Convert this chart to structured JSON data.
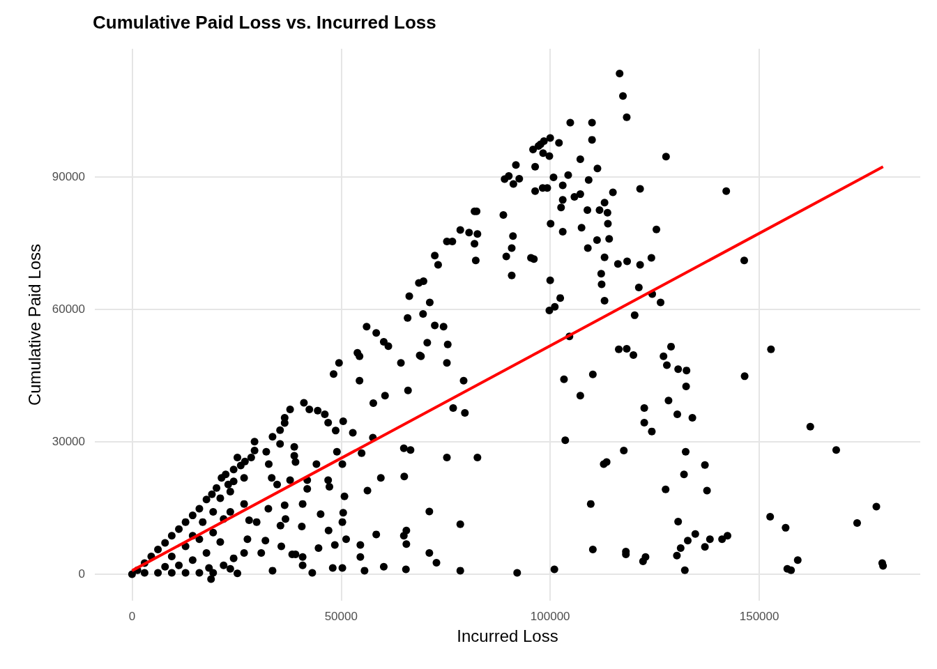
{
  "chart_data": {
    "type": "scatter",
    "title": "Cumulative Paid Loss vs. Incurred Loss",
    "xlabel": "Incurred Loss",
    "ylabel": "Cumulative Paid Loss",
    "xlim": [
      -8900,
      188500
    ],
    "xticks": [
      0,
      50000,
      100000,
      150000
    ],
    "ylim": [
      -6000,
      118900
    ],
    "yticks": [
      0,
      30000,
      60000,
      90000
    ],
    "grid": true,
    "series": [
      {
        "color": "#000000",
        "marker": "circle",
        "x": [
          116600,
          117400,
          118300,
          104800,
          110000,
          110000,
          97700,
          98500,
          100000,
          102100,
          95900,
          97200,
          98300,
          99800,
          96400,
          92600,
          91800,
          90100,
          89100,
          91200,
          96400,
          98200,
          99300,
          100800,
          103000,
          104300,
          103000,
          102600,
          105800,
          107200,
          107200,
          108900,
          109200,
          111300,
          111800,
          113000,
          113700,
          113800,
          115000,
          114100,
          113000,
          111200,
          109000,
          107500,
          103000,
          100100,
          95400,
          96100,
          90800,
          91100,
          88800,
          90800,
          89500,
          100000,
          99800,
          101100,
          102400,
          104600,
          116200,
          118400,
          112200,
          112300,
          113000,
          121500,
          121200,
          120200,
          124200,
          125400,
          127700,
          121500,
          142100,
          146400,
          146500,
          152800,
          124400,
          126400,
          128900,
          127100,
          127900,
          130600,
          132600,
          132500,
          116400,
          118300,
          119900,
          110200,
          103300,
          107200,
          128300,
          130400,
          134000,
          122500,
          122500,
          124300,
          103600,
          117600,
          132400,
          112800,
          113500,
          137000,
          109700,
          127600,
          137500,
          162200,
          168400,
          152600,
          156300,
          173400,
          178000,
          179400,
          179600,
          159200,
          156700,
          157600,
          142400,
          141100,
          138200,
          137000,
          134700,
          132900,
          131200,
          130300,
          130600,
          132200,
          132000,
          122800,
          122200,
          118100,
          118100,
          110200,
          101000,
          92100,
          78500,
          72800,
          71100,
          71100,
          78500,
          65500,
          65600,
          65600,
          65000,
          58400,
          60200,
          51200,
          54600,
          54600,
          55600,
          50300,
          50500,
          50800,
          48500,
          47000,
          48000,
          50300,
          45100,
          44600,
          43100,
          40800,
          40800,
          35700,
          35500,
          36700,
          33600,
          40600,
          38300,
          39100,
          49500,
          48200,
          53900,
          54400,
          56100,
          58400,
          60200,
          61300,
          54400,
          60500,
          57700,
          64300,
          66000,
          66300,
          65900,
          68600,
          69700,
          71200,
          69600,
          68800,
          70600,
          72400,
          73200,
          72400,
          74500,
          75500,
          75300,
          75300,
          76600,
          78500,
          80600,
          81900,
          82400,
          81900,
          82200,
          82600,
          79300,
          79600,
          76800,
          75300,
          82600,
          69100,
          65000,
          66600,
          65100,
          59500,
          56300,
          57600,
          54900,
          52800,
          50500,
          48700,
          46900,
          46100,
          49000,
          50300,
          46900,
          47200,
          44400,
          42400,
          41100,
          44100,
          41900,
          41900,
          40800,
          38800,
          38800,
          37800,
          36500,
          36500,
          35400,
          39100,
          35400,
          33600,
          32100,
          29300,
          29300,
          28500,
          27000,
          25200,
          32700,
          33400,
          34700,
          37800,
          36500,
          32600,
          26800,
          23500,
          23500,
          22400,
          21400,
          26800,
          28000,
          29800,
          27600,
          31900,
          30900,
          26800,
          24300,
          23500,
          25200,
          21900,
          18900,
          18400,
          21100,
          0,
          1300,
          3000,
          4600,
          6200,
          7900,
          9500,
          11200,
          12800,
          14500,
          16100,
          17800,
          19100,
          20200,
          3000,
          6200,
          9500,
          12800,
          16100,
          19400,
          9500,
          12800,
          16100,
          14500,
          11200,
          7900,
          17800,
          19400,
          19400,
          16900,
          14500,
          21100,
          21900,
          23000,
          24300,
          26000,
          24300
        ],
        "values": [
          113300,
          108200,
          103400,
          102200,
          102200,
          98300,
          97300,
          98000,
          98700,
          97600,
          96100,
          96900,
          95300,
          94600,
          92200,
          89500,
          92600,
          90100,
          89400,
          88300,
          86700,
          87400,
          87400,
          89800,
          88000,
          90300,
          84700,
          83000,
          85400,
          86000,
          93900,
          82400,
          89200,
          91800,
          82400,
          84100,
          81800,
          79300,
          86400,
          75900,
          71700,
          75600,
          73800,
          78400,
          77500,
          79300,
          71600,
          71300,
          73800,
          76500,
          81300,
          67600,
          71900,
          66500,
          59700,
          60500,
          62500,
          53800,
          70200,
          70800,
          68000,
          65600,
          61900,
          70000,
          64900,
          58600,
          71600,
          78000,
          94500,
          87200,
          86700,
          71000,
          44800,
          50900,
          63400,
          61500,
          51500,
          49300,
          47300,
          46400,
          46100,
          42500,
          50900,
          51000,
          49600,
          45200,
          44100,
          40400,
          39300,
          36200,
          35400,
          37600,
          34300,
          32300,
          30300,
          28000,
          27700,
          24900,
          25400,
          24700,
          15900,
          19200,
          18900,
          33400,
          28100,
          13000,
          10500,
          11600,
          15300,
          2500,
          1900,
          3200,
          1200,
          900,
          8700,
          7900,
          7900,
          6200,
          9100,
          7600,
          5900,
          4200,
          11900,
          900,
          22600,
          3900,
          2900,
          5100,
          4500,
          5600,
          1100,
          300,
          800,
          2600,
          4800,
          14200,
          11300,
          1100,
          9900,
          6800,
          8700,
          9000,
          1700,
          7900,
          6600,
          3900,
          800,
          11800,
          13900,
          17600,
          6600,
          9900,
          1400,
          1400,
          13600,
          5900,
          300,
          2000,
          3900,
          6300,
          11000,
          12500,
          800,
          10800,
          4500,
          4500,
          47800,
          45300,
          50100,
          49300,
          56000,
          54600,
          52600,
          51600,
          43800,
          40400,
          38700,
          47800,
          41600,
          62900,
          58000,
          65900,
          66300,
          61500,
          58900,
          49500,
          52400,
          72100,
          70000,
          56300,
          56000,
          52000,
          47800,
          75300,
          75300,
          77900,
          77300,
          82100,
          82100,
          74800,
          71000,
          77000,
          43800,
          36500,
          37600,
          26400,
          26400,
          49300,
          28500,
          28100,
          22100,
          21800,
          18900,
          30900,
          27400,
          32000,
          34600,
          32500,
          34300,
          36200,
          27700,
          24900,
          21300,
          19800,
          37000,
          37300,
          38800,
          24900,
          21300,
          19300,
          15900,
          26800,
          28800,
          37300,
          35400,
          34200,
          32600,
          25400,
          29500,
          31100,
          27700,
          30000,
          28000,
          26400,
          25500,
          26400,
          24900,
          21800,
          20300,
          21300,
          15600,
          14800,
          15900,
          14100,
          18700,
          22600,
          21800,
          21800,
          12200,
          11800,
          7900,
          7600,
          4800,
          4800,
          3600,
          1200,
          200,
          2000,
          -1100,
          1400,
          7300,
          0,
          900,
          2500,
          4000,
          5600,
          7100,
          8700,
          10200,
          11800,
          13300,
          14800,
          16900,
          18100,
          19500,
          300,
          300,
          300,
          300,
          300,
          300,
          4000,
          6300,
          7900,
          3200,
          2000,
          1700,
          4800,
          9400,
          14100,
          11800,
          8700,
          17200,
          12500,
          20300,
          21000,
          24600,
          23700
        ]
      },
      {
        "type": "line",
        "marker": "none",
        "color": "#ff0000",
        "x": [
          0,
          179600
        ],
        "values": [
          800,
          92200
        ]
      }
    ]
  }
}
